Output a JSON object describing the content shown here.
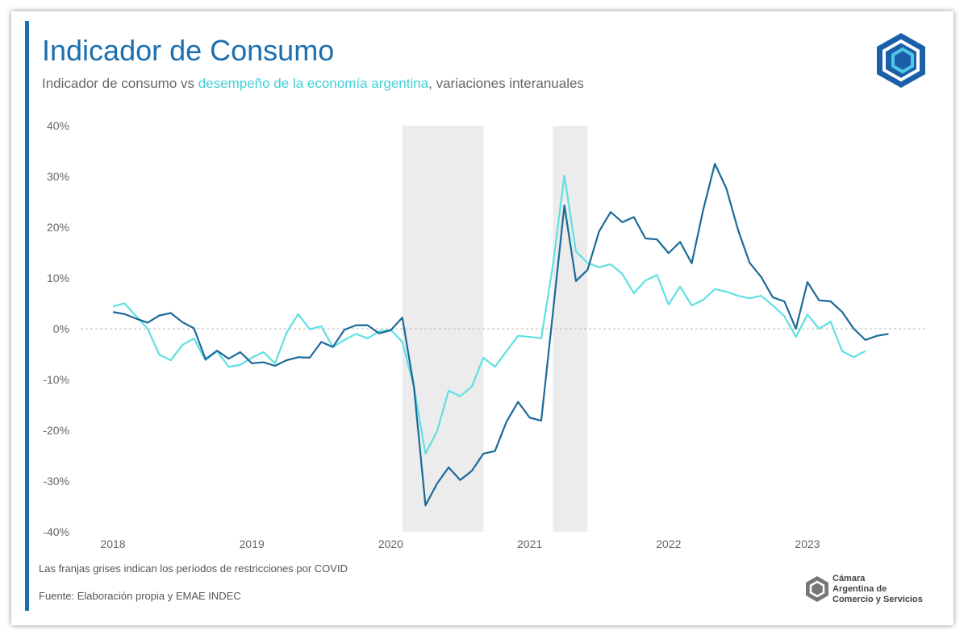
{
  "chart_data": {
    "type": "line",
    "title": "Indicador de Consumo",
    "subtitle": [
      "Indicador de consumo vs ",
      "desempeño de la economía argentina",
      ", variaciones interanuales"
    ],
    "categories": [
      "2018",
      null,
      null,
      null,
      null,
      null,
      null,
      null,
      null,
      null,
      null,
      null,
      "2019",
      null,
      null,
      null,
      null,
      null,
      null,
      null,
      null,
      null,
      null,
      null,
      "2020",
      null,
      null,
      null,
      null,
      null,
      null,
      null,
      null,
      null,
      null,
      null,
      "2021",
      null,
      null,
      null,
      null,
      null,
      null,
      null,
      null,
      null,
      null,
      null,
      "2022",
      null,
      null,
      null,
      null,
      null,
      null,
      null,
      null,
      null,
      null,
      null,
      "2023",
      null,
      null,
      null,
      null,
      null,
      null,
      null
    ],
    "series": [
      {
        "color": "#5fe0e2",
        "values": [
          4.4,
          5,
          2.5,
          0,
          -5.1,
          -6.2,
          -3.2,
          -1.9,
          -6.2,
          -4.4,
          -7.5,
          -7.1,
          -5.7,
          -4.6,
          -6.8,
          -0.8,
          2.9,
          -0.1,
          0.5,
          -3.6,
          -2.2,
          -1,
          -1.9,
          -0.5,
          -0.2,
          -2.6,
          -11.4,
          -24.6,
          -20.2,
          -12.2,
          -13.3,
          -11.4,
          -5.7,
          -7.5,
          -4.4,
          -1.4,
          -1.6,
          -1.9,
          12.4,
          30.2,
          15.2,
          13,
          12.1,
          12.7,
          10.8,
          7,
          9.5,
          10.6,
          4.8,
          8.3,
          4.6,
          5.7,
          7.8,
          7.3,
          6.5,
          6,
          6.5,
          4.6,
          2.5,
          -1.6,
          2.8,
          0,
          1.4,
          -4.4,
          -5.6,
          -4.4,
          null,
          null
        ]
      },
      {
        "color": "#1b6a98",
        "values": [
          3.3,
          2.9,
          2,
          1.2,
          2.6,
          3.1,
          1.3,
          0.1,
          -6,
          -4.3,
          -5.9,
          -4.6,
          -6.8,
          -6.6,
          -7.3,
          -6.2,
          -5.6,
          -5.7,
          -2.6,
          -3.6,
          -0.2,
          0.7,
          0.7,
          -0.9,
          -0.3,
          2.2,
          -11.4,
          -34.8,
          -30.5,
          -27.3,
          -29.8,
          -28,
          -24.6,
          -24.1,
          -18.3,
          -14.4,
          -17.5,
          -18.1,
          3,
          24.3,
          9.4,
          11.6,
          19.2,
          23,
          21,
          22,
          17.8,
          17.6,
          14.9,
          17.1,
          12.9,
          23.5,
          32.5,
          27.6,
          19.5,
          13,
          10.2,
          6.2,
          5.4,
          0,
          9.2,
          5.6,
          5.4,
          3.3,
          0,
          -2.2,
          -1.4,
          -1
        ]
      }
    ],
    "shaded_periods": [
      {
        "from": 25,
        "to": 32
      },
      {
        "from": 38,
        "to": 41
      }
    ],
    "ylim": [
      -40,
      40
    ],
    "yticks": [
      {
        "value": 40,
        "label": "40%"
      },
      {
        "value": 30,
        "label": "30%"
      },
      {
        "value": 20,
        "label": "20%"
      },
      {
        "value": 10,
        "label": "10%"
      },
      {
        "value": 0,
        "label": "0%"
      },
      {
        "value": -10,
        "label": "-10%"
      },
      {
        "value": -20,
        "label": "-20%"
      },
      {
        "value": -30,
        "label": "-30%"
      },
      {
        "value": -40,
        "label": "-40%"
      }
    ],
    "zero_line": true,
    "note": "Las franjas grises indican los períodos de restricciones por COVID",
    "source": "Fuente: Elaboración propia y EMAE INDEC",
    "brand": [
      "Cámara",
      "Argentina de",
      "Comercio y Servicios"
    ]
  }
}
